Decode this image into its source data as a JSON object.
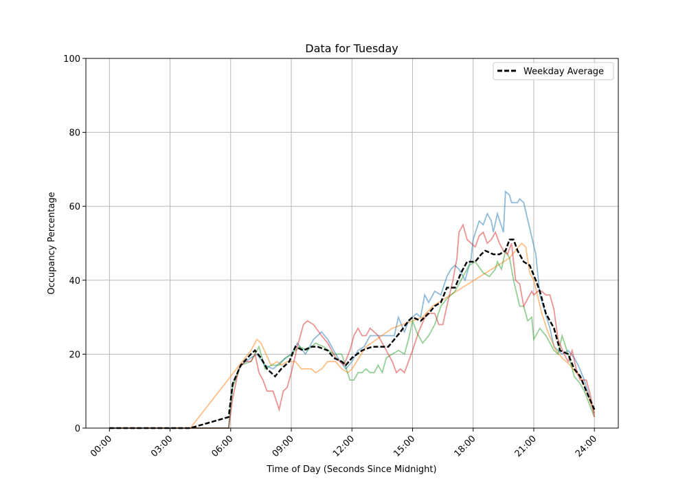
{
  "chart_data": {
    "type": "line",
    "title": "Data for Tuesday",
    "xlabel": "Time of Day (Seconds Since Midnight)",
    "ylabel": "Occupancy Percentage",
    "xlim": [
      "-01:10",
      "25:11"
    ],
    "ylim": [
      0,
      100
    ],
    "grid": true,
    "legend_position": "top-right",
    "x_ticks": [
      "00:00",
      "03:00",
      "06:00",
      "09:00",
      "12:00",
      "15:00",
      "18:00",
      "21:00",
      "24:00"
    ],
    "y_ticks": [
      0,
      20,
      40,
      60,
      80,
      100
    ],
    "series": [
      {
        "color": "#1f77b4",
        "points": [
          [
            "00:00",
            0
          ],
          [
            "05:54",
            0
          ],
          [
            "06:06",
            12
          ],
          [
            "06:30",
            17
          ],
          [
            "07:00",
            19
          ],
          [
            "07:18",
            20
          ],
          [
            "07:42",
            17
          ],
          [
            "08:06",
            16
          ],
          [
            "08:30",
            18
          ],
          [
            "09:00",
            20
          ],
          [
            "09:18",
            23
          ],
          [
            "09:42",
            20
          ],
          [
            "10:06",
            24
          ],
          [
            "10:30",
            26
          ],
          [
            "10:48",
            24
          ],
          [
            "11:18",
            19
          ],
          [
            "11:42",
            16
          ],
          [
            "12:00",
            18
          ],
          [
            "12:18",
            21
          ],
          [
            "12:36",
            22
          ],
          [
            "12:54",
            25
          ],
          [
            "13:30",
            25
          ],
          [
            "14:06",
            25
          ],
          [
            "14:18",
            30
          ],
          [
            "14:36",
            26
          ],
          [
            "14:48",
            29
          ],
          [
            "15:00",
            30
          ],
          [
            "15:12",
            31
          ],
          [
            "15:24",
            30
          ],
          [
            "15:36",
            36
          ],
          [
            "15:48",
            34
          ],
          [
            "16:06",
            37
          ],
          [
            "16:24",
            36
          ],
          [
            "16:42",
            41
          ],
          [
            "16:54",
            43
          ],
          [
            "17:06",
            44
          ],
          [
            "17:18",
            43
          ],
          [
            "17:36",
            40
          ],
          [
            "17:54",
            46
          ],
          [
            "18:00",
            51
          ],
          [
            "18:18",
            56
          ],
          [
            "18:30",
            55
          ],
          [
            "18:42",
            58
          ],
          [
            "18:54",
            56
          ],
          [
            "19:00",
            53
          ],
          [
            "19:12",
            58
          ],
          [
            "19:30",
            53
          ],
          [
            "19:36",
            64
          ],
          [
            "19:48",
            63
          ],
          [
            "19:54",
            61
          ],
          [
            "20:12",
            61
          ],
          [
            "20:18",
            62
          ],
          [
            "20:30",
            61
          ],
          [
            "20:48",
            54
          ],
          [
            "21:06",
            47
          ],
          [
            "21:18",
            36
          ],
          [
            "21:48",
            27
          ],
          [
            "22:00",
            22
          ],
          [
            "22:24",
            20
          ],
          [
            "22:42",
            21
          ],
          [
            "23:00",
            19
          ],
          [
            "23:12",
            17
          ],
          [
            "23:30",
            13
          ],
          [
            "24:00",
            4
          ]
        ]
      },
      {
        "color": "#ff7f0e",
        "points": [
          [
            "00:00",
            0
          ],
          [
            "04:00",
            0
          ],
          [
            "06:00",
            14
          ],
          [
            "07:00",
            21
          ],
          [
            "07:18",
            24
          ],
          [
            "07:30",
            23
          ],
          [
            "08:00",
            17
          ],
          [
            "08:18",
            18
          ],
          [
            "08:30",
            17
          ],
          [
            "08:48",
            18
          ],
          [
            "09:12",
            18
          ],
          [
            "09:30",
            16
          ],
          [
            "10:00",
            16
          ],
          [
            "10:12",
            15
          ],
          [
            "10:30",
            16
          ],
          [
            "10:48",
            18
          ],
          [
            "11:12",
            18
          ],
          [
            "11:30",
            16
          ],
          [
            "11:48",
            15
          ],
          [
            "12:00",
            16
          ],
          [
            "12:42",
            22
          ],
          [
            "14:00",
            27
          ],
          [
            "15:00",
            29
          ],
          [
            "15:30",
            30
          ],
          [
            "16:00",
            33
          ],
          [
            "19:48",
            46
          ],
          [
            "20:06",
            48
          ],
          [
            "20:24",
            50
          ],
          [
            "20:36",
            49
          ],
          [
            "20:48",
            42
          ],
          [
            "21:00",
            40
          ],
          [
            "21:24",
            31
          ],
          [
            "21:42",
            26
          ],
          [
            "22:06",
            21
          ],
          [
            "22:24",
            19
          ],
          [
            "22:48",
            17
          ],
          [
            "23:06",
            15
          ],
          [
            "23:24",
            13
          ],
          [
            "24:00",
            4
          ]
        ]
      },
      {
        "color": "#2ca02c",
        "points": [
          [
            "00:00",
            0
          ],
          [
            "05:54",
            0
          ],
          [
            "06:06",
            11
          ],
          [
            "06:30",
            17
          ],
          [
            "07:00",
            18
          ],
          [
            "07:24",
            22
          ],
          [
            "07:42",
            16
          ],
          [
            "08:00",
            17
          ],
          [
            "08:24",
            17
          ],
          [
            "08:42",
            19
          ],
          [
            "09:00",
            20
          ],
          [
            "09:24",
            22
          ],
          [
            "09:48",
            21
          ],
          [
            "10:12",
            23
          ],
          [
            "10:36",
            22
          ],
          [
            "11:06",
            20
          ],
          [
            "11:30",
            20
          ],
          [
            "11:54",
            13
          ],
          [
            "12:06",
            13
          ],
          [
            "12:18",
            15
          ],
          [
            "12:30",
            15
          ],
          [
            "12:42",
            16
          ],
          [
            "12:54",
            15
          ],
          [
            "13:06",
            15
          ],
          [
            "13:18",
            17
          ],
          [
            "13:30",
            15
          ],
          [
            "13:42",
            19
          ],
          [
            "14:00",
            20
          ],
          [
            "14:18",
            21
          ],
          [
            "14:36",
            20
          ],
          [
            "14:48",
            24
          ],
          [
            "15:00",
            29
          ],
          [
            "15:12",
            26
          ],
          [
            "15:30",
            23
          ],
          [
            "15:48",
            25
          ],
          [
            "16:06",
            28
          ],
          [
            "16:24",
            33
          ],
          [
            "16:42",
            35
          ],
          [
            "17:06",
            37
          ],
          [
            "17:30",
            41
          ],
          [
            "17:48",
            44
          ],
          [
            "18:06",
            45
          ],
          [
            "18:30",
            42
          ],
          [
            "18:48",
            41
          ],
          [
            "19:06",
            43
          ],
          [
            "19:12",
            45
          ],
          [
            "19:24",
            43
          ],
          [
            "19:36",
            48
          ],
          [
            "19:48",
            46
          ],
          [
            "20:00",
            40
          ],
          [
            "20:18",
            33
          ],
          [
            "20:30",
            33
          ],
          [
            "20:42",
            29
          ],
          [
            "20:54",
            30
          ],
          [
            "21:00",
            24
          ],
          [
            "21:18",
            27
          ],
          [
            "21:36",
            25
          ],
          [
            "22:00",
            21
          ],
          [
            "22:12",
            20
          ],
          [
            "22:24",
            25
          ],
          [
            "22:42",
            20
          ],
          [
            "23:00",
            14
          ],
          [
            "23:18",
            12
          ],
          [
            "23:30",
            10
          ],
          [
            "24:00",
            3
          ]
        ]
      },
      {
        "color": "#d62728",
        "points": [
          [
            "00:00",
            0
          ],
          [
            "05:54",
            0
          ],
          [
            "06:06",
            8
          ],
          [
            "06:24",
            16
          ],
          [
            "06:42",
            18
          ],
          [
            "07:00",
            18
          ],
          [
            "07:12",
            20
          ],
          [
            "07:24",
            15
          ],
          [
            "07:36",
            13
          ],
          [
            "07:48",
            10
          ],
          [
            "08:06",
            10
          ],
          [
            "08:24",
            5
          ],
          [
            "08:36",
            10
          ],
          [
            "08:48",
            11
          ],
          [
            "09:00",
            15
          ],
          [
            "09:18",
            22
          ],
          [
            "09:36",
            28
          ],
          [
            "09:48",
            29
          ],
          [
            "10:06",
            28
          ],
          [
            "10:30",
            25
          ],
          [
            "10:48",
            23
          ],
          [
            "11:12",
            19
          ],
          [
            "11:36",
            17
          ],
          [
            "11:54",
            21
          ],
          [
            "12:06",
            25
          ],
          [
            "12:18",
            27
          ],
          [
            "12:30",
            25
          ],
          [
            "12:42",
            25
          ],
          [
            "12:54",
            27
          ],
          [
            "13:18",
            25
          ],
          [
            "13:42",
            21
          ],
          [
            "14:00",
            18
          ],
          [
            "14:12",
            15
          ],
          [
            "14:24",
            16
          ],
          [
            "14:36",
            15
          ],
          [
            "14:48",
            18
          ],
          [
            "15:00",
            21
          ],
          [
            "15:18",
            26
          ],
          [
            "15:42",
            31
          ],
          [
            "16:06",
            31
          ],
          [
            "16:18",
            28
          ],
          [
            "16:30",
            28
          ],
          [
            "16:42",
            33
          ],
          [
            "17:00",
            40
          ],
          [
            "17:12",
            46
          ],
          [
            "17:18",
            53
          ],
          [
            "17:30",
            55
          ],
          [
            "17:42",
            51
          ],
          [
            "17:54",
            50
          ],
          [
            "18:06",
            49
          ],
          [
            "18:18",
            52
          ],
          [
            "18:30",
            53
          ],
          [
            "18:42",
            50
          ],
          [
            "18:54",
            51
          ],
          [
            "19:06",
            53
          ],
          [
            "19:18",
            50
          ],
          [
            "19:30",
            48
          ],
          [
            "19:42",
            47
          ],
          [
            "19:54",
            50
          ],
          [
            "20:06",
            40
          ],
          [
            "20:18",
            39
          ],
          [
            "20:30",
            33
          ],
          [
            "20:42",
            35
          ],
          [
            "20:54",
            37
          ],
          [
            "21:00",
            36
          ],
          [
            "21:12",
            37
          ],
          [
            "21:24",
            37
          ],
          [
            "21:36",
            36
          ],
          [
            "21:48",
            36
          ],
          [
            "22:00",
            32
          ],
          [
            "22:12",
            24
          ],
          [
            "22:30",
            20
          ],
          [
            "22:42",
            18
          ],
          [
            "22:54",
            21
          ],
          [
            "23:06",
            16
          ],
          [
            "23:18",
            13
          ],
          [
            "23:36",
            13
          ],
          [
            "23:48",
            9
          ],
          [
            "24:00",
            3
          ]
        ]
      },
      {
        "name": "Weekday Average",
        "color": "#000000",
        "dashed": true,
        "points": [
          [
            "00:00",
            0
          ],
          [
            "04:00",
            0
          ],
          [
            "05:54",
            3
          ],
          [
            "06:06",
            12
          ],
          [
            "06:30",
            17
          ],
          [
            "07:00",
            20
          ],
          [
            "07:12",
            21
          ],
          [
            "07:30",
            19
          ],
          [
            "07:48",
            16
          ],
          [
            "08:12",
            14
          ],
          [
            "08:30",
            16
          ],
          [
            "08:54",
            18
          ],
          [
            "09:12",
            22
          ],
          [
            "09:36",
            21
          ],
          [
            "10:00",
            22
          ],
          [
            "10:18",
            22
          ],
          [
            "10:48",
            21
          ],
          [
            "11:06",
            19
          ],
          [
            "11:30",
            18
          ],
          [
            "11:42",
            17
          ],
          [
            "12:00",
            19
          ],
          [
            "12:30",
            21
          ],
          [
            "13:00",
            22
          ],
          [
            "13:18",
            22
          ],
          [
            "13:48",
            22
          ],
          [
            "14:06",
            24
          ],
          [
            "14:24",
            26
          ],
          [
            "14:48",
            29
          ],
          [
            "15:00",
            30
          ],
          [
            "15:24",
            29
          ],
          [
            "15:48",
            31
          ],
          [
            "16:06",
            33
          ],
          [
            "16:24",
            34
          ],
          [
            "16:42",
            38
          ],
          [
            "17:06",
            38
          ],
          [
            "17:24",
            42
          ],
          [
            "17:42",
            45
          ],
          [
            "18:06",
            45
          ],
          [
            "18:24",
            47
          ],
          [
            "18:36",
            48
          ],
          [
            "19:00",
            47
          ],
          [
            "19:18",
            47
          ],
          [
            "19:36",
            48
          ],
          [
            "19:48",
            51
          ],
          [
            "20:00",
            51
          ],
          [
            "20:12",
            48
          ],
          [
            "20:30",
            45
          ],
          [
            "20:48",
            44
          ],
          [
            "21:06",
            40
          ],
          [
            "21:18",
            37
          ],
          [
            "21:36",
            31
          ],
          [
            "22:00",
            27
          ],
          [
            "22:18",
            21
          ],
          [
            "22:42",
            20
          ],
          [
            "23:00",
            16
          ],
          [
            "23:18",
            14
          ],
          [
            "23:36",
            10
          ],
          [
            "24:00",
            5
          ]
        ]
      }
    ]
  }
}
